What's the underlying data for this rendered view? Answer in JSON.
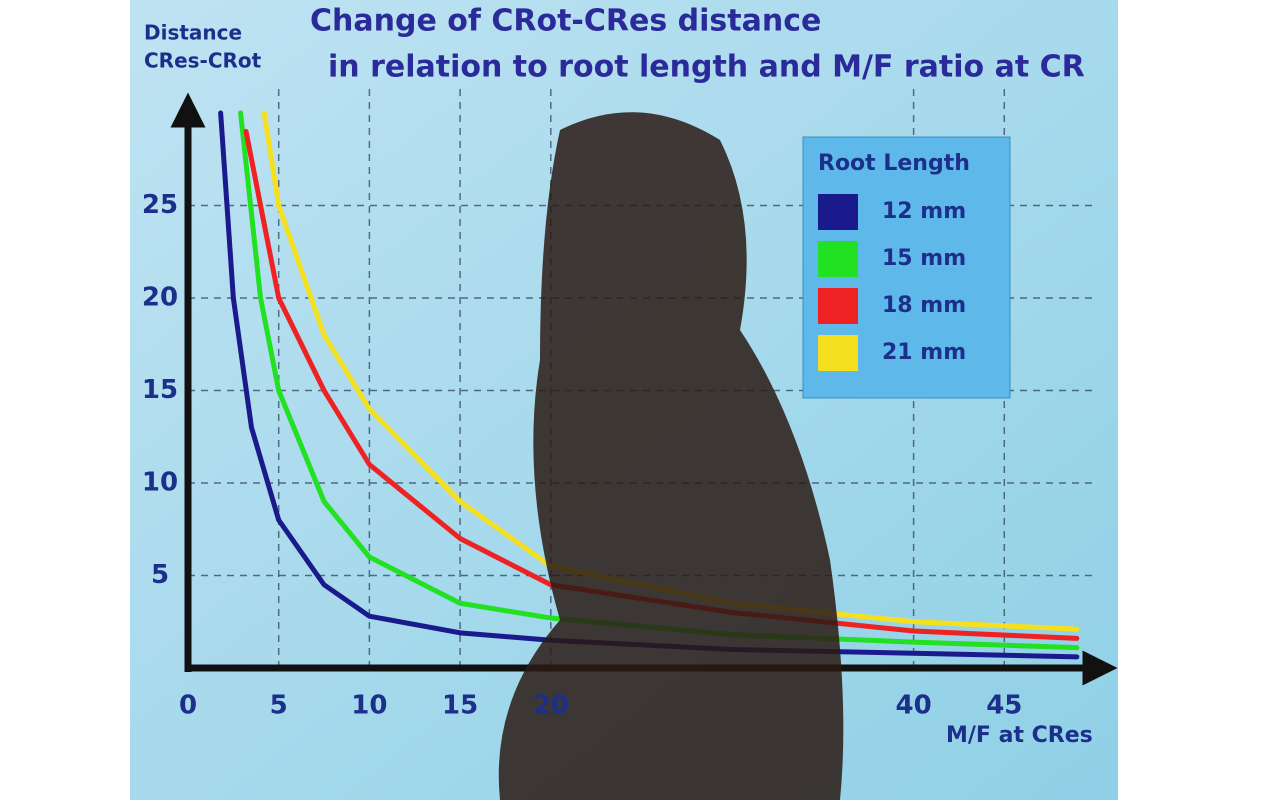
{
  "chart_data": {
    "type": "line",
    "title": [
      "Change of CRot-CRes distance",
      "in relation to root length and M/F ratio at CR"
    ],
    "ylabel": [
      "Distance",
      "CRes-CRot"
    ],
    "xlabel": "M/F at CRes",
    "xlim": [
      0,
      50
    ],
    "ylim": [
      0,
      30
    ],
    "xticks": [
      0,
      5,
      10,
      15,
      20,
      40,
      45
    ],
    "yticks": [
      5,
      10,
      15,
      20,
      25
    ],
    "grid": true,
    "legend_title": "Root Length",
    "legend_position": "upper right",
    "series": [
      {
        "name": "12 mm",
        "color": "#1a1a8c",
        "x": [
          1.8,
          2.5,
          3.5,
          5,
          7.5,
          10,
          15,
          20,
          30,
          40,
          49
        ],
        "values": [
          30,
          20,
          13,
          8,
          4.5,
          2.8,
          1.9,
          1.5,
          1.0,
          0.8,
          0.6
        ]
      },
      {
        "name": "15 mm",
        "color": "#22e022",
        "x": [
          2.9,
          4,
          5,
          7.5,
          10,
          15,
          20,
          30,
          40,
          49
        ],
        "values": [
          30,
          20,
          15,
          9,
          6,
          3.5,
          2.7,
          1.8,
          1.4,
          1.1
        ]
      },
      {
        "name": "18 mm",
        "color": "#ee2222",
        "x": [
          3.2,
          5,
          7.5,
          10,
          15,
          20,
          30,
          40,
          49
        ],
        "values": [
          29,
          20,
          15,
          11,
          7,
          4.5,
          3,
          2,
          1.6
        ]
      },
      {
        "name": "21 mm",
        "color": "#f5e020",
        "x": [
          4.2,
          5,
          7.5,
          10,
          15,
          20,
          30,
          40,
          49
        ],
        "values": [
          30,
          25,
          18,
          14,
          9,
          5.5,
          3.5,
          2.5,
          2.1
        ]
      }
    ]
  }
}
